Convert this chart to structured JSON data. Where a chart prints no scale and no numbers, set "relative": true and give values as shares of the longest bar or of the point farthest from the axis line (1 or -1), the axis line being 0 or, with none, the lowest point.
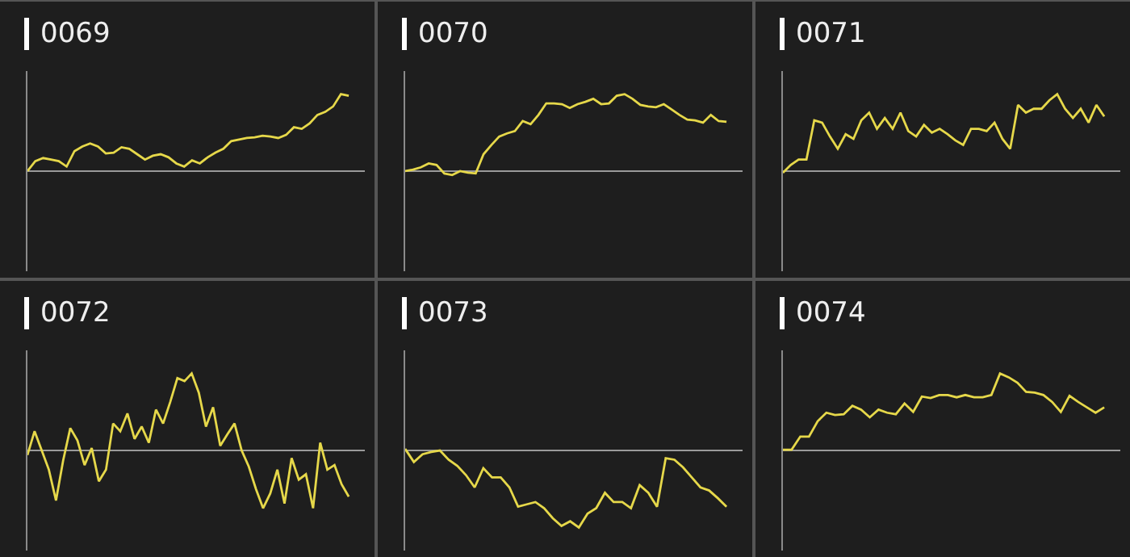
{
  "chart_data": [
    {
      "type": "line",
      "title": "0069",
      "relative": true,
      "categories": [
        null,
        null,
        null,
        null,
        null,
        null,
        null,
        null,
        null,
        null,
        null,
        null,
        null,
        null,
        null,
        null,
        null,
        null,
        null,
        null,
        null,
        null,
        null,
        null,
        null,
        null,
        null,
        null,
        null,
        null,
        null,
        null,
        null,
        null,
        null,
        null,
        null,
        null,
        null,
        null,
        null,
        null
      ],
      "series": [
        {
          "color": "#e6d84a",
          "values": [
            0,
            0.13,
            0.17,
            0.15,
            0.13,
            0.06,
            0.26,
            0.32,
            0.36,
            0.32,
            0.23,
            0.24,
            0.31,
            0.29,
            0.22,
            0.15,
            0.2,
            0.22,
            0.18,
            0.1,
            0.06,
            0.14,
            0.1,
            0.18,
            0.24,
            0.29,
            0.39,
            0.41,
            0.43,
            0.44,
            0.46,
            0.45,
            0.43,
            0.47,
            0.57,
            0.55,
            0.62,
            0.73,
            0.77,
            0.84,
            1,
            0.98
          ]
        }
      ]
    },
    {
      "type": "line",
      "title": "0070",
      "relative": true,
      "categories": [
        null,
        null,
        null,
        null,
        null,
        null,
        null,
        null,
        null,
        null,
        null,
        null,
        null,
        null,
        null,
        null,
        null,
        null,
        null,
        null,
        null,
        null,
        null,
        null,
        null,
        null,
        null,
        null,
        null,
        null,
        null,
        null,
        null,
        null,
        null,
        null,
        null,
        null,
        null,
        null,
        null,
        null
      ],
      "series": [
        {
          "color": "#e6d84a",
          "values": [
            0,
            0.02,
            0.05,
            0.1,
            0.08,
            -0.03,
            -0.05,
            0,
            -0.02,
            -0.03,
            0.22,
            0.34,
            0.45,
            0.49,
            0.52,
            0.65,
            0.61,
            0.73,
            0.88,
            0.88,
            0.87,
            0.82,
            0.87,
            0.9,
            0.94,
            0.87,
            0.88,
            0.98,
            1,
            0.94,
            0.86,
            0.84,
            0.83,
            0.87,
            0.8,
            0.73,
            0.67,
            0.66,
            0.63,
            0.73,
            0.65,
            0.64
          ]
        }
      ]
    },
    {
      "type": "line",
      "title": "0071",
      "relative": true,
      "categories": [
        null,
        null,
        null,
        null,
        null,
        null,
        null,
        null,
        null,
        null,
        null,
        null,
        null,
        null,
        null,
        null,
        null,
        null,
        null,
        null,
        null,
        null,
        null,
        null,
        null,
        null,
        null,
        null,
        null,
        null,
        null,
        null,
        null,
        null,
        null,
        null,
        null,
        null,
        null,
        null,
        null,
        null
      ],
      "series": [
        {
          "color": "#e6d84a",
          "values": [
            -0.02,
            0.08,
            0.15,
            0.15,
            0.66,
            0.63,
            0.45,
            0.29,
            0.48,
            0.42,
            0.66,
            0.76,
            0.55,
            0.69,
            0.55,
            0.76,
            0.52,
            0.45,
            0.6,
            0.5,
            0.55,
            0.48,
            0.4,
            0.34,
            0.55,
            0.55,
            0.52,
            0.63,
            0.42,
            0.29,
            0.86,
            0.76,
            0.81,
            0.81,
            0.92,
            1,
            0.81,
            0.69,
            0.81,
            0.63,
            0.86,
            0.71
          ]
        }
      ]
    },
    {
      "type": "line",
      "title": "0072",
      "relative": true,
      "categories": [
        null,
        null,
        null,
        null,
        null,
        null,
        null,
        null,
        null,
        null,
        null,
        null,
        null,
        null,
        null,
        null,
        null,
        null,
        null,
        null,
        null,
        null,
        null,
        null,
        null,
        null,
        null,
        null,
        null,
        null,
        null,
        null,
        null,
        null,
        null,
        null,
        null,
        null,
        null,
        null,
        null,
        null,
        null,
        null,
        null,
        null
      ],
      "series": [
        {
          "color": "#e6d84a",
          "values": [
            -0.06,
            0.25,
            0,
            -0.25,
            -0.65,
            -0.13,
            0.29,
            0.13,
            -0.19,
            0.03,
            -0.4,
            -0.25,
            0.35,
            0.25,
            0.48,
            0.15,
            0.31,
            0.1,
            0.53,
            0.35,
            0.63,
            0.94,
            0.9,
            1,
            0.75,
            0.31,
            0.56,
            0.06,
            0.21,
            0.35,
            0,
            -0.21,
            -0.5,
            -0.75,
            -0.56,
            -0.25,
            -0.69,
            -0.1,
            -0.38,
            -0.31,
            -0.75,
            0.1,
            -0.25,
            -0.19,
            -0.44,
            -0.6
          ]
        }
      ]
    },
    {
      "type": "line",
      "title": "0073",
      "relative": true,
      "categories": [
        null,
        null,
        null,
        null,
        null,
        null,
        null,
        null,
        null,
        null,
        null,
        null,
        null,
        null,
        null,
        null,
        null,
        null,
        null,
        null,
        null,
        null,
        null,
        null,
        null,
        null,
        null,
        null,
        null,
        null,
        null,
        null,
        null,
        null,
        null,
        null,
        null,
        null
      ],
      "series": [
        {
          "color": "#e6d84a",
          "values": [
            0.02,
            -0.15,
            -0.05,
            -0.02,
            0,
            -0.12,
            -0.2,
            -0.32,
            -0.48,
            -0.23,
            -0.35,
            -0.35,
            -0.48,
            -0.73,
            -0.7,
            -0.67,
            -0.75,
            -0.88,
            -0.98,
            -0.92,
            -1,
            -0.82,
            -0.75,
            -0.55,
            -0.67,
            -0.67,
            -0.75,
            -0.45,
            -0.55,
            -0.73,
            -0.1,
            -0.12,
            -0.22,
            -0.35,
            -0.48,
            -0.52,
            -0.62,
            -0.73
          ]
        }
      ]
    },
    {
      "type": "line",
      "title": "0074",
      "relative": true,
      "categories": [
        null,
        null,
        null,
        null,
        null,
        null,
        null,
        null,
        null,
        null,
        null,
        null,
        null,
        null,
        null,
        null,
        null,
        null,
        null,
        null,
        null,
        null,
        null,
        null,
        null,
        null,
        null,
        null,
        null,
        null,
        null,
        null,
        null,
        null,
        null,
        null,
        null,
        null
      ],
      "series": [
        {
          "color": "#e6d84a",
          "values": [
            0.01,
            0.01,
            0.18,
            0.18,
            0.38,
            0.49,
            0.46,
            0.47,
            0.58,
            0.53,
            0.43,
            0.53,
            0.49,
            0.47,
            0.61,
            0.5,
            0.7,
            0.68,
            0.72,
            0.72,
            0.69,
            0.72,
            0.69,
            0.69,
            0.72,
            1,
            0.95,
            0.88,
            0.76,
            0.75,
            0.72,
            0.63,
            0.5,
            0.71,
            0.63,
            0.56,
            0.49,
            0.56
          ]
        }
      ]
    }
  ]
}
